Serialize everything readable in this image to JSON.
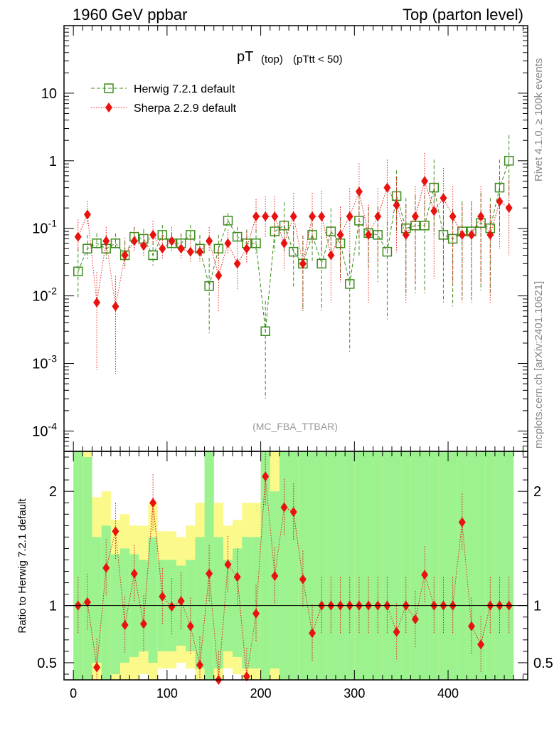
{
  "header": {
    "left": "1960 GeV ppbar",
    "right": "Top (parton level)"
  },
  "side": {
    "rivet": "Rivet 4.1.0, ≥ 100k events",
    "mcplots": "mcplots.cern.ch [arXiv:2401.10621]"
  },
  "chart_data": {
    "type": "line",
    "title": "pT",
    "title_sub1": "(top)",
    "title_sub2": "(pTtt < 50)",
    "analysis": "(MC_FBA_TTBAR)",
    "xlabel": "",
    "ylabel_ratio": "Ratio to Herwig 7.2.1 default",
    "xlim": [
      -10,
      485
    ],
    "ylim_main": [
      5e-05,
      100
    ],
    "ylim_ratio": [
      0.35,
      2.35
    ],
    "x_ticks": [
      "0",
      "100",
      "200",
      "300",
      "400"
    ],
    "y_ticks_main": [
      {
        "base": "10",
        "exp": "-4",
        "v": 0.0001
      },
      {
        "base": "10",
        "exp": "-3",
        "v": 0.001
      },
      {
        "base": "10",
        "exp": "-2",
        "v": 0.01
      },
      {
        "base": "10",
        "exp": "-1",
        "v": 0.1
      },
      {
        "base": "1",
        "exp": "",
        "v": 1
      },
      {
        "base": "10",
        "exp": "",
        "v": 10
      }
    ],
    "y_ticks_ratio": [
      "0.5",
      "1",
      "2"
    ],
    "series": [
      {
        "name": "Herwig 7.2.1 default",
        "color": "#3a8c1a",
        "marker": "open-square",
        "x": [
          5,
          15,
          25,
          35,
          45,
          55,
          65,
          75,
          85,
          95,
          105,
          115,
          125,
          135,
          145,
          155,
          165,
          175,
          185,
          195,
          205,
          215,
          225,
          235,
          245,
          255,
          265,
          275,
          285,
          295,
          305,
          315,
          325,
          335,
          345,
          355,
          365,
          375,
          385,
          395,
          405,
          415,
          425,
          435,
          445,
          455,
          465
        ],
        "y": [
          0.023,
          0.05,
          0.06,
          0.05,
          0.06,
          0.04,
          0.075,
          0.07,
          0.04,
          0.08,
          0.06,
          0.06,
          0.08,
          0.05,
          0.014,
          0.05,
          0.13,
          0.075,
          0.06,
          0.06,
          0.003,
          0.09,
          0.11,
          0.045,
          0.03,
          0.08,
          0.03,
          0.09,
          0.06,
          0.015,
          0.13,
          0.085,
          0.08,
          0.045,
          0.3,
          0.1,
          0.11,
          0.11,
          0.4,
          0.08,
          0.07,
          0.09,
          0.09,
          0.12,
          0.1,
          0.4,
          1.0
        ],
        "yerr": [
          0.6,
          0.3,
          0.2,
          0.3,
          0.2,
          0.3,
          0.2,
          0.2,
          0.3,
          0.2,
          0.2,
          0.2,
          0.2,
          0.3,
          0.8,
          0.3,
          0.15,
          0.2,
          0.3,
          0.3,
          0.9,
          0.5,
          0.6,
          0.7,
          0.8,
          0.6,
          0.8,
          0.6,
          0.7,
          0.9,
          0.7,
          0.7,
          0.8,
          0.9,
          0.7,
          0.9,
          0.9,
          0.9,
          0.8,
          0.9,
          0.9,
          0.9,
          0.9,
          0.9,
          0.9,
          0.8,
          0.7
        ]
      },
      {
        "name": "Sherpa 2.2.9 default",
        "color": "#e8120f",
        "marker": "filled-diamond",
        "x": [
          5,
          15,
          25,
          35,
          45,
          55,
          65,
          75,
          85,
          95,
          105,
          115,
          125,
          135,
          145,
          155,
          165,
          175,
          185,
          195,
          205,
          215,
          225,
          235,
          245,
          255,
          265,
          275,
          285,
          295,
          305,
          315,
          325,
          335,
          345,
          355,
          365,
          375,
          385,
          395,
          405,
          415,
          425,
          435,
          445,
          455,
          465
        ],
        "y": [
          0.075,
          0.16,
          0.008,
          0.065,
          0.007,
          0.04,
          0.065,
          0.055,
          0.08,
          0.05,
          0.065,
          0.05,
          0.045,
          0.045,
          0.065,
          0.02,
          0.06,
          0.03,
          0.05,
          0.15,
          0.15,
          0.15,
          0.06,
          0.15,
          0.03,
          0.15,
          0.15,
          0.04,
          0.08,
          0.15,
          0.35,
          0.08,
          0.15,
          0.4,
          0.22,
          0.08,
          0.15,
          0.5,
          0.18,
          0.28,
          0.15,
          0.08,
          0.08,
          0.15,
          0.08,
          0.25,
          0.2
        ],
        "yerr": [
          0.4,
          0.3,
          0.9,
          0.3,
          0.9,
          0.4,
          0.3,
          0.3,
          0.3,
          0.3,
          0.3,
          0.3,
          0.3,
          0.3,
          0.3,
          0.7,
          0.3,
          0.6,
          0.4,
          0.4,
          0.5,
          0.5,
          0.6,
          0.6,
          0.8,
          0.6,
          0.7,
          0.8,
          0.8,
          0.8,
          0.8,
          0.9,
          0.8,
          0.8,
          0.8,
          0.9,
          0.9,
          0.8,
          0.9,
          0.9,
          0.9,
          0.9,
          0.9,
          0.9,
          0.9,
          0.8,
          0.8
        ]
      }
    ],
    "ratio": {
      "x": [
        5,
        15,
        25,
        35,
        45,
        55,
        65,
        75,
        85,
        95,
        105,
        115,
        125,
        135,
        145,
        155,
        165,
        175,
        185,
        195,
        205,
        215,
        225,
        235,
        245,
        255,
        265,
        275,
        285,
        295,
        305,
        315,
        325,
        335,
        345,
        355,
        365,
        375,
        385,
        395,
        405,
        415,
        425,
        435,
        445,
        455,
        465
      ],
      "sherpa": [
        1.0,
        1.03,
        0.46,
        1.33,
        1.65,
        0.83,
        1.28,
        0.84,
        1.9,
        1.08,
        0.99,
        1.04,
        0.82,
        0.48,
        1.28,
        0.35,
        1.36,
        1.25,
        0.38,
        0.93,
        2.13,
        1.26,
        1.86,
        1.82,
        1.23,
        0.76,
        1.0,
        1.0,
        1.0,
        1.0,
        1.0,
        1.0,
        1.0,
        1.0,
        0.77,
        1.0,
        0.88,
        1.27,
        1.0,
        1.0,
        1.0,
        1.73,
        0.82,
        0.66,
        1.0,
        1.0,
        1.0
      ],
      "band_inner_lo": [
        0.35,
        0.35,
        0.5,
        0.35,
        0.4,
        0.5,
        0.55,
        0.6,
        0.5,
        0.6,
        0.6,
        0.65,
        0.6,
        0.45,
        0.35,
        0.45,
        0.6,
        0.55,
        0.45,
        0.45,
        0.35,
        0.45,
        0.35,
        0.35,
        0.35,
        0.35,
        0.35,
        0.35,
        0.35,
        0.35,
        0.35,
        0.35,
        0.35,
        0.35,
        0.35,
        0.35,
        0.35,
        0.35,
        0.35,
        0.35,
        0.35,
        0.35,
        0.35,
        0.35,
        0.35,
        0.35,
        0.35
      ],
      "band_inner_hi": [
        2.35,
        2.3,
        1.6,
        1.7,
        1.45,
        1.5,
        1.45,
        1.4,
        1.6,
        1.4,
        1.4,
        1.35,
        1.4,
        1.6,
        2.35,
        1.6,
        1.4,
        1.5,
        1.6,
        1.6,
        2.35,
        2.0,
        2.35,
        2.35,
        2.35,
        2.35,
        2.35,
        2.35,
        2.35,
        2.35,
        2.35,
        2.35,
        2.35,
        2.35,
        2.35,
        2.35,
        2.35,
        2.35,
        2.35,
        2.35,
        2.35,
        2.35,
        2.35,
        2.35,
        2.35,
        2.35,
        2.35
      ],
      "band_outer_lo": [
        0.35,
        0.35,
        0.35,
        0.35,
        0.35,
        0.35,
        0.35,
        0.4,
        0.35,
        0.45,
        0.45,
        0.5,
        0.45,
        0.35,
        0.35,
        0.35,
        0.45,
        0.4,
        0.35,
        0.35,
        0.35,
        0.35,
        0.35,
        0.35,
        0.35,
        0.35,
        0.35,
        0.35,
        0.35,
        0.35,
        0.35,
        0.35,
        0.35,
        0.35,
        0.35,
        0.35,
        0.35,
        0.35,
        0.35,
        0.35,
        0.35,
        0.35,
        0.35,
        0.35,
        0.35,
        0.35,
        0.35
      ],
      "band_outer_hi": [
        2.35,
        2.35,
        1.95,
        2.0,
        1.75,
        1.8,
        1.7,
        1.7,
        1.9,
        1.65,
        1.65,
        1.6,
        1.7,
        1.9,
        2.35,
        1.9,
        1.7,
        1.75,
        1.9,
        1.9,
        2.35,
        2.35,
        2.35,
        2.35,
        2.35,
        2.35,
        2.35,
        2.35,
        2.35,
        2.35,
        2.35,
        2.35,
        2.35,
        2.35,
        2.35,
        2.35,
        2.35,
        2.35,
        2.35,
        2.35,
        2.35,
        2.35,
        2.35,
        2.35,
        2.35,
        2.35,
        2.35
      ]
    }
  }
}
